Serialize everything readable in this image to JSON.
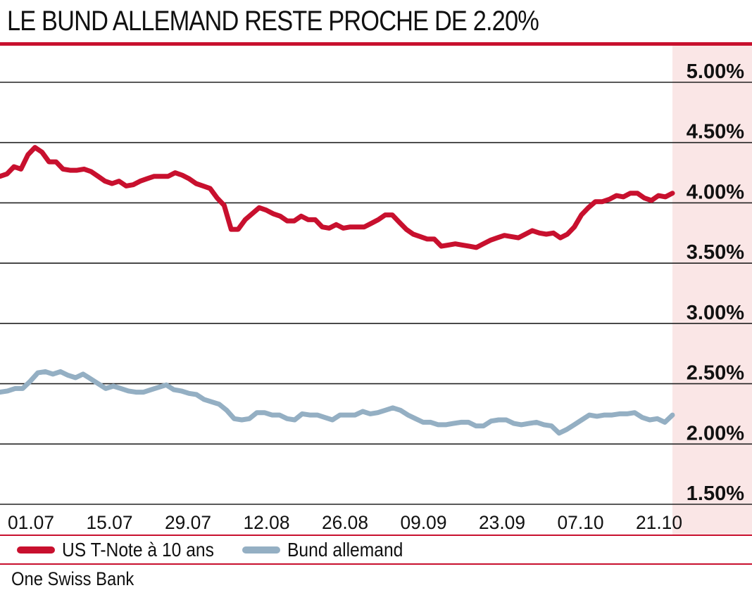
{
  "title": "LE BUND ALLEMAND RESTE PROCHE DE 2.20%",
  "source": "One Swiss Bank",
  "colors": {
    "accent": "#c8102e",
    "series_1": "#c8102e",
    "series_2": "#94afc3",
    "panel": "#fae6e6",
    "grid": "#222222"
  },
  "chart_data": {
    "type": "line",
    "ylim": [
      1.5,
      5.0
    ],
    "y_ticks": [
      "5.00%",
      "4.50%",
      "4.00%",
      "3.50%",
      "3.00%",
      "2.50%",
      "2.00%",
      "1.50%"
    ],
    "y_tick_values": [
      5.0,
      4.5,
      4.0,
      3.5,
      3.0,
      2.5,
      2.0,
      1.5
    ],
    "x_ticks": [
      "01.07",
      "15.07",
      "29.07",
      "12.08",
      "26.08",
      "09.09",
      "23.09",
      "07.10",
      "21.10"
    ],
    "grid": true,
    "legend": "bottom",
    "series": [
      {
        "name": "US T-Note à 10 ans",
        "color": "#c8102e",
        "values": [
          4.22,
          4.24,
          4.3,
          4.28,
          4.4,
          4.46,
          4.42,
          4.34,
          4.34,
          4.28,
          4.27,
          4.27,
          4.28,
          4.26,
          4.22,
          4.18,
          4.16,
          4.18,
          4.14,
          4.15,
          4.18,
          4.2,
          4.22,
          4.22,
          4.22,
          4.25,
          4.23,
          4.2,
          4.16,
          4.14,
          4.12,
          4.04,
          3.98,
          3.78,
          3.78,
          3.86,
          3.91,
          3.96,
          3.94,
          3.91,
          3.89,
          3.85,
          3.85,
          3.89,
          3.86,
          3.86,
          3.8,
          3.79,
          3.82,
          3.79,
          3.8,
          3.8,
          3.8,
          3.83,
          3.86,
          3.9,
          3.9,
          3.84,
          3.78,
          3.74,
          3.72,
          3.7,
          3.7,
          3.64,
          3.65,
          3.66,
          3.65,
          3.64,
          3.63,
          3.66,
          3.69,
          3.71,
          3.73,
          3.72,
          3.71,
          3.74,
          3.77,
          3.75,
          3.74,
          3.75,
          3.71,
          3.74,
          3.8,
          3.9,
          3.96,
          4.01,
          4.01,
          4.03,
          4.06,
          4.05,
          4.08,
          4.08,
          4.04,
          4.02,
          4.06,
          4.05,
          4.08
        ]
      },
      {
        "name": "Bund allemand",
        "color": "#94afc3",
        "values": [
          2.43,
          2.44,
          2.46,
          2.46,
          2.52,
          2.59,
          2.6,
          2.58,
          2.6,
          2.57,
          2.55,
          2.58,
          2.54,
          2.5,
          2.46,
          2.48,
          2.46,
          2.44,
          2.43,
          2.43,
          2.45,
          2.47,
          2.49,
          2.45,
          2.44,
          2.42,
          2.41,
          2.37,
          2.35,
          2.33,
          2.28,
          2.21,
          2.2,
          2.21,
          2.26,
          2.26,
          2.24,
          2.24,
          2.21,
          2.2,
          2.25,
          2.24,
          2.24,
          2.22,
          2.2,
          2.24,
          2.24,
          2.24,
          2.27,
          2.25,
          2.26,
          2.28,
          2.3,
          2.28,
          2.24,
          2.21,
          2.18,
          2.18,
          2.16,
          2.16,
          2.17,
          2.18,
          2.18,
          2.15,
          2.15,
          2.19,
          2.2,
          2.2,
          2.17,
          2.16,
          2.17,
          2.18,
          2.16,
          2.15,
          2.09,
          2.12,
          2.16,
          2.2,
          2.24,
          2.23,
          2.24,
          2.24,
          2.25,
          2.25,
          2.26,
          2.22,
          2.2,
          2.21,
          2.18,
          2.24
        ]
      }
    ]
  }
}
